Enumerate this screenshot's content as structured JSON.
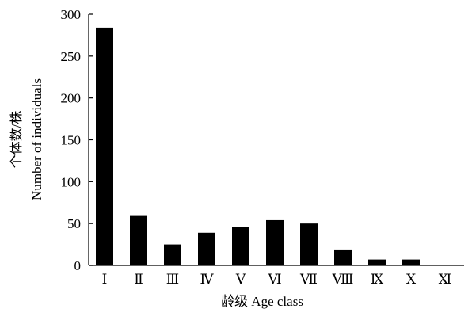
{
  "chart_data": {
    "type": "bar",
    "categories": [
      "Ⅰ",
      "Ⅱ",
      "Ⅲ",
      "Ⅳ",
      "Ⅴ",
      "Ⅵ",
      "Ⅶ",
      "Ⅷ",
      "Ⅸ",
      "Ⅹ",
      "Ⅺ"
    ],
    "values": [
      284,
      60,
      25,
      39,
      46,
      54,
      50,
      19,
      7,
      7,
      0
    ],
    "yticks": [
      0,
      50,
      100,
      150,
      200,
      250,
      300
    ],
    "ylim": [
      0,
      300
    ],
    "xlabel": "龄级 Age class",
    "ylabel_cn": "个体数/株",
    "ylabel_en": "Number of individuals",
    "grid": false,
    "bar_color": "#000000"
  }
}
